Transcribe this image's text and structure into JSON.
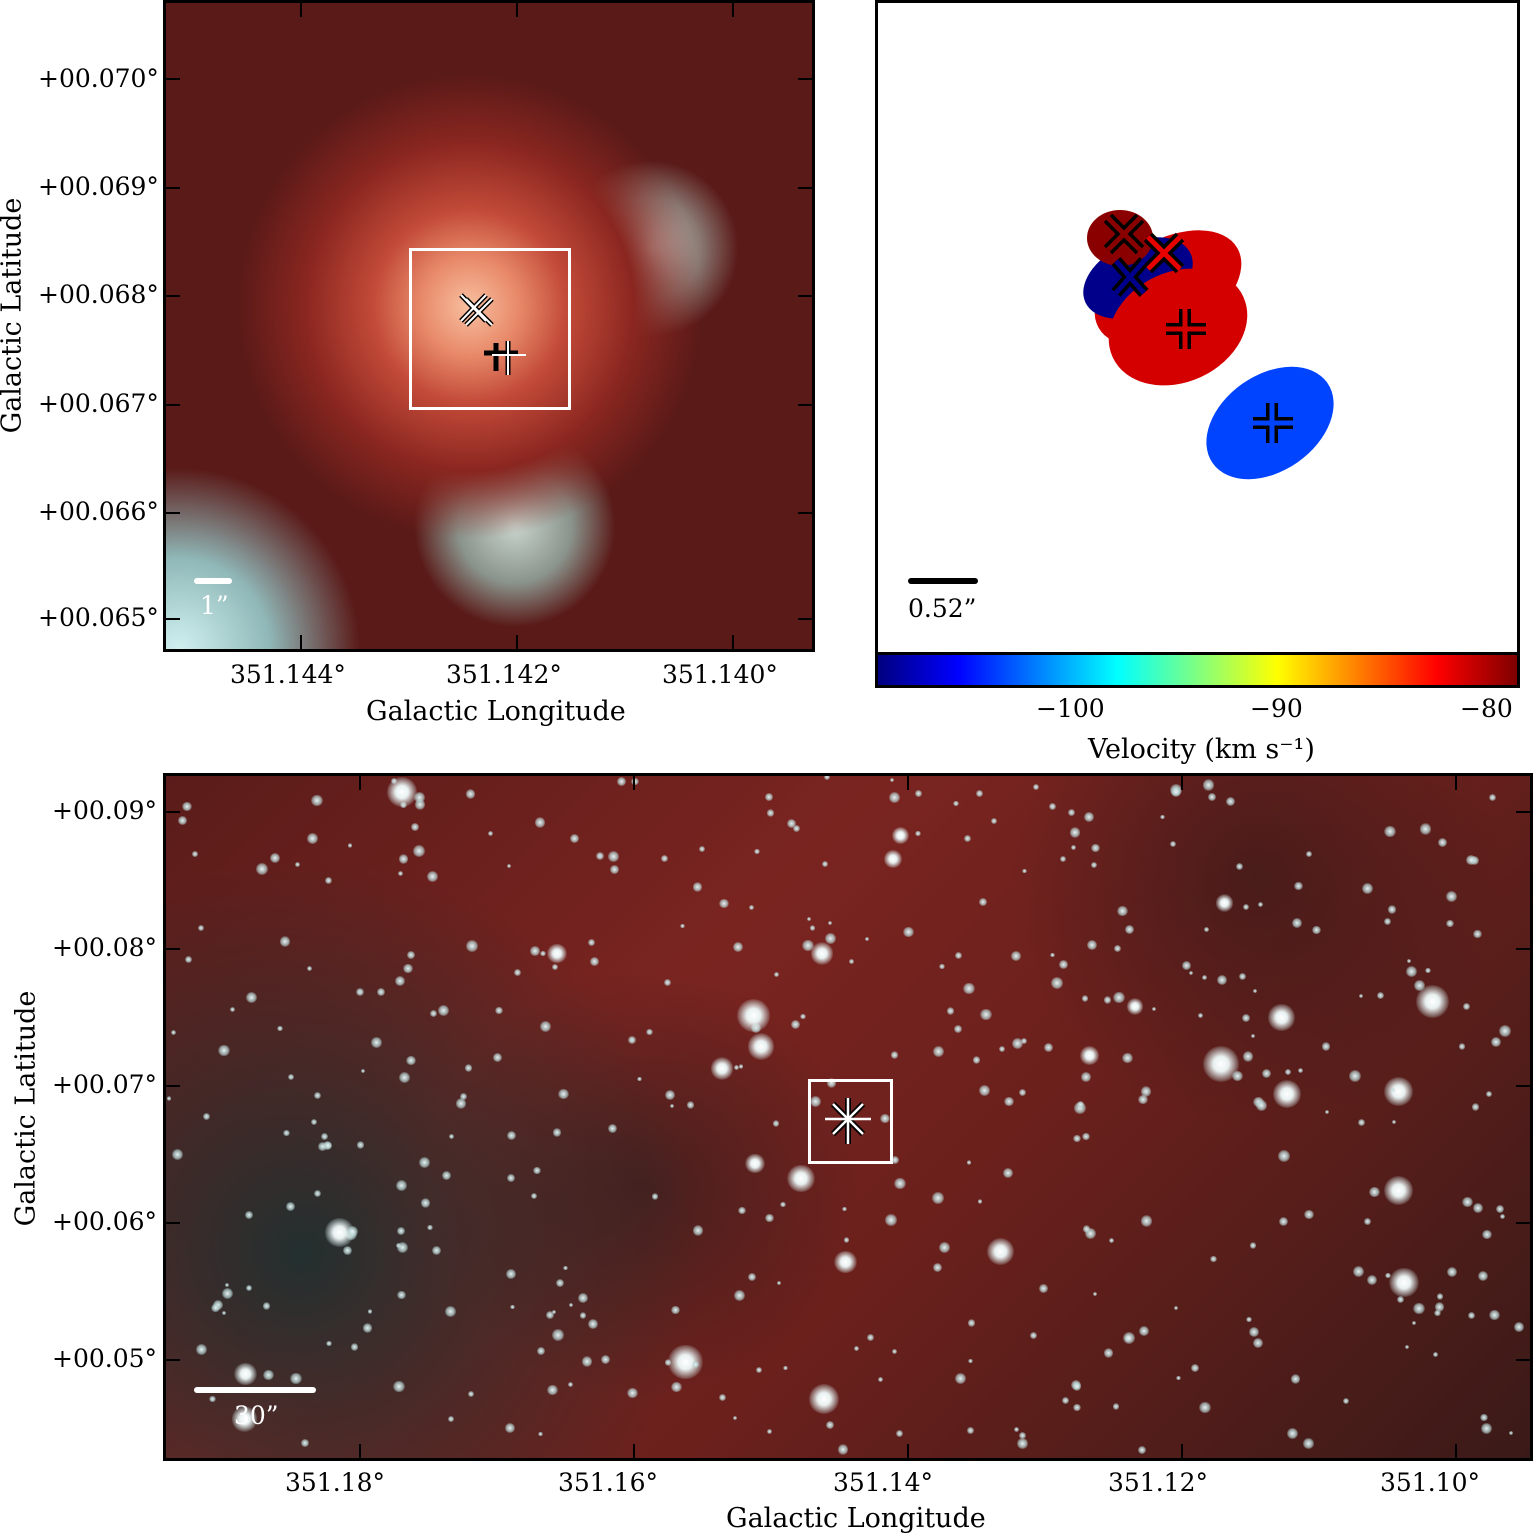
{
  "top_left": {
    "y_ticks": [
      "+00.070°",
      "+00.069°",
      "+00.068°",
      "+00.067°",
      "+00.066°",
      "+00.065°"
    ],
    "x_ticks": [
      "351.144°",
      "351.142°",
      "351.140°"
    ],
    "xlabel": "Galactic Longitude",
    "ylabel": "Galactic Latitude",
    "scale_label": "1”"
  },
  "top_right": {
    "scale_label": "0.52”",
    "colorbar_ticks": [
      "−100",
      "−90",
      "−80"
    ],
    "colorbar_label": "Velocity (km s⁻¹)",
    "colorbar_colors": [
      "#00007f",
      "#0000ff",
      "#0080ff",
      "#00ffff",
      "#80ff80",
      "#ffff00",
      "#ff8000",
      "#ff0000",
      "#7f0000"
    ]
  },
  "bottom": {
    "y_ticks": [
      "+00.09°",
      "+00.08°",
      "+00.07°",
      "+00.06°",
      "+00.05°"
    ],
    "x_ticks": [
      "351.18°",
      "351.16°",
      "351.14°",
      "351.12°",
      "351.10°"
    ],
    "xlabel": "Galactic Longitude",
    "ylabel": "Galactic Latitude",
    "scale_label": "30”"
  }
}
